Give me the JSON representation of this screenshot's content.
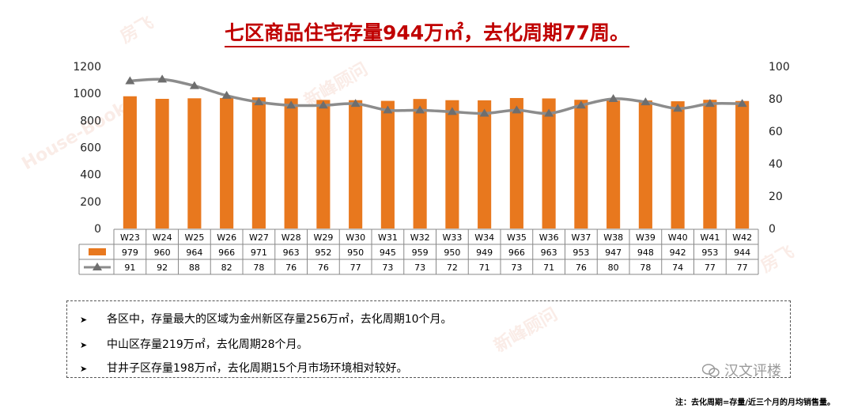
{
  "title": "七区商品住宅存量944万㎡，去化周期77周。",
  "chart_data": {
    "type": "bar+line",
    "categories": [
      "W23",
      "W24",
      "W25",
      "W26",
      "W27",
      "W28",
      "W29",
      "W30",
      "W31",
      "W32",
      "W33",
      "W34",
      "W35",
      "W36",
      "W37",
      "W38",
      "W39",
      "W40",
      "W41",
      "W42"
    ],
    "series": [
      {
        "kind": "bar",
        "axis": "left",
        "color": "#e8781e",
        "values": [
          979,
          960,
          964,
          966,
          971,
          963,
          952,
          950,
          945,
          959,
          950,
          949,
          966,
          963,
          953,
          947,
          948,
          942,
          953,
          944
        ]
      },
      {
        "kind": "line",
        "axis": "right",
        "color": "#8c8c8c",
        "values": [
          91,
          92,
          88,
          82,
          78,
          76,
          76,
          77,
          73,
          73,
          72,
          71,
          73,
          71,
          76,
          80,
          78,
          74,
          77,
          77
        ]
      }
    ],
    "left_axis": {
      "ylim": [
        0,
        1200
      ],
      "ticks": [
        0,
        200,
        400,
        600,
        800,
        1000,
        1200
      ]
    },
    "right_axis": {
      "ylim": [
        0,
        100
      ],
      "ticks": [
        0,
        20,
        40,
        60,
        80,
        100
      ]
    },
    "grid": false,
    "data_table": true
  },
  "notes": [
    "各区中，存量最大的区域为金州新区存量256万㎡，去化周期10个月。",
    "中山区存量219万㎡，去化周期28个月。",
    "甘井子区存量198万㎡，去化周期15个月市场环境相对较好。"
  ],
  "footnote": "注：去化周期=存量/近三个月的月均销售量。",
  "brand": "汉文评楼",
  "watermarks": [
    "房飞",
    "House-Book",
    "新峰顾问"
  ],
  "colors": {
    "title": "#c00000",
    "bar": "#e8781e",
    "line": "#8c8c8c"
  }
}
